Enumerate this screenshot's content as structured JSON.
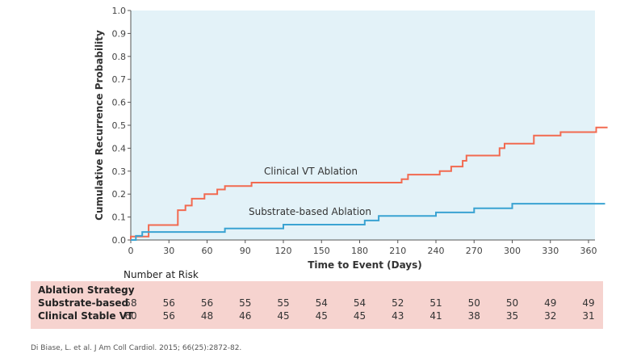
{
  "chart_data": {
    "type": "line",
    "xlabel": "Time to Event (Days)",
    "ylabel": "Cumulative Recurrence Probability",
    "xlim": [
      0,
      360
    ],
    "ylim": [
      0,
      1.0
    ],
    "x_ticks": [
      0,
      30,
      60,
      90,
      120,
      150,
      180,
      210,
      240,
      270,
      300,
      330,
      360
    ],
    "y_ticks": [
      "0.0",
      "0.1",
      "0.2",
      "0.3",
      "0.4",
      "0.5",
      "0.6",
      "0.7",
      "0.8",
      "0.9",
      "1.0"
    ],
    "background": "#e3f2f8",
    "series": [
      {
        "name": "Clinical VT Ablation",
        "color": "#f26a50",
        "step_points": [
          [
            0,
            0.0
          ],
          [
            0,
            0.015
          ],
          [
            14,
            0.015
          ],
          [
            14,
            0.065
          ],
          [
            37,
            0.065
          ],
          [
            37,
            0.13
          ],
          [
            43,
            0.13
          ],
          [
            43,
            0.15
          ],
          [
            48,
            0.15
          ],
          [
            48,
            0.18
          ],
          [
            58,
            0.18
          ],
          [
            58,
            0.2
          ],
          [
            68,
            0.2
          ],
          [
            68,
            0.22
          ],
          [
            74,
            0.22
          ],
          [
            74,
            0.235
          ],
          [
            95,
            0.235
          ],
          [
            95,
            0.25
          ],
          [
            213,
            0.25
          ],
          [
            213,
            0.265
          ],
          [
            218,
            0.265
          ],
          [
            218,
            0.285
          ],
          [
            243,
            0.285
          ],
          [
            243,
            0.3
          ],
          [
            252,
            0.3
          ],
          [
            252,
            0.32
          ],
          [
            261,
            0.32
          ],
          [
            261,
            0.345
          ],
          [
            264,
            0.345
          ],
          [
            264,
            0.368
          ],
          [
            290,
            0.368
          ],
          [
            290,
            0.4
          ],
          [
            294,
            0.4
          ],
          [
            294,
            0.42
          ],
          [
            317,
            0.42
          ],
          [
            317,
            0.455
          ],
          [
            338,
            0.455
          ],
          [
            338,
            0.47
          ],
          [
            366,
            0.47
          ],
          [
            366,
            0.49
          ],
          [
            375,
            0.49
          ]
        ]
      },
      {
        "name": "Substrate-based Ablation",
        "color": "#3aa3d2",
        "step_points": [
          [
            0,
            0.0
          ],
          [
            4,
            0.0
          ],
          [
            4,
            0.018
          ],
          [
            9,
            0.018
          ],
          [
            9,
            0.035
          ],
          [
            74,
            0.035
          ],
          [
            74,
            0.05
          ],
          [
            120,
            0.05
          ],
          [
            120,
            0.067
          ],
          [
            184,
            0.067
          ],
          [
            184,
            0.085
          ],
          [
            195,
            0.085
          ],
          [
            195,
            0.105
          ],
          [
            240,
            0.105
          ],
          [
            240,
            0.12
          ],
          [
            270,
            0.12
          ],
          [
            270,
            0.138
          ],
          [
            300,
            0.138
          ],
          [
            300,
            0.158
          ],
          [
            373,
            0.158
          ]
        ]
      }
    ],
    "annotations": [
      "Clinical VT Ablation",
      "Substrate-based Ablation"
    ]
  },
  "risk_table": {
    "title": "Number at Risk",
    "header": "Ablation Strategy",
    "rows": [
      {
        "label": "Substrate-based",
        "values": [
          58,
          56,
          56,
          55,
          55,
          54,
          54,
          52,
          51,
          50,
          50,
          49,
          49
        ]
      },
      {
        "label": "Clinical Stable VT",
        "values": [
          60,
          56,
          48,
          46,
          45,
          45,
          45,
          43,
          41,
          38,
          35,
          32,
          31
        ]
      }
    ]
  },
  "citation": "Di Biase, L. et al. J Am Coll Cardiol. 2015; 66(25):2872-82."
}
